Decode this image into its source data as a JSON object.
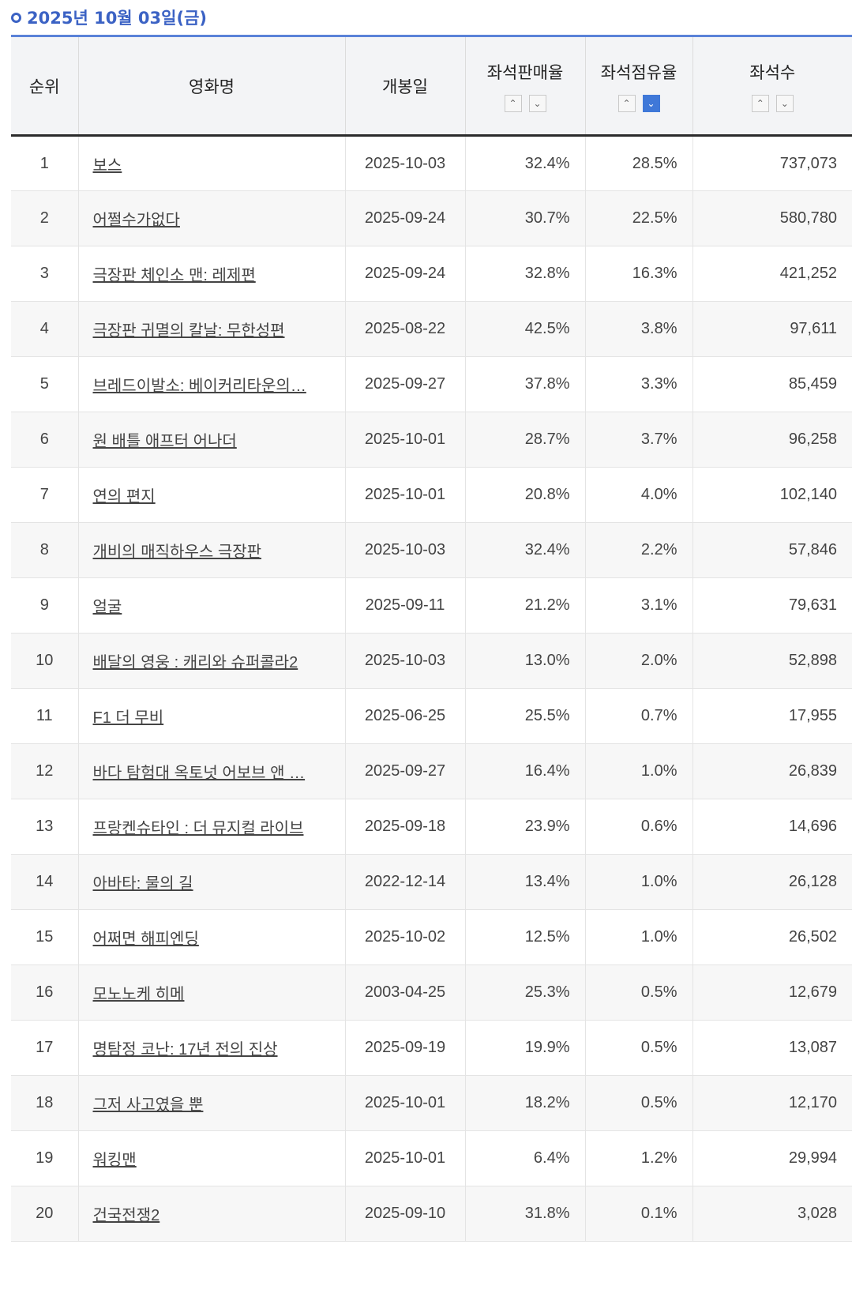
{
  "header": {
    "date": "2025년 10월 03일(금)"
  },
  "table": {
    "columns": [
      {
        "key": "rank",
        "label": "순위",
        "sortable": false
      },
      {
        "key": "title",
        "label": "영화명",
        "sortable": false
      },
      {
        "key": "release",
        "label": "개봉일",
        "sortable": false
      },
      {
        "key": "sales_rate",
        "label": "좌석판매율",
        "sortable": true,
        "active": ""
      },
      {
        "key": "share_rate",
        "label": "좌석점유율",
        "sortable": true,
        "active": "down"
      },
      {
        "key": "seats",
        "label": "좌석수",
        "sortable": true,
        "active": ""
      }
    ],
    "rows": [
      {
        "rank": "1",
        "title": "보스",
        "release": "2025-10-03",
        "sales_rate": "32.4%",
        "share_rate": "28.5%",
        "seats": "737,073"
      },
      {
        "rank": "2",
        "title": "어쩔수가없다",
        "release": "2025-09-24",
        "sales_rate": "30.7%",
        "share_rate": "22.5%",
        "seats": "580,780"
      },
      {
        "rank": "3",
        "title": "극장판 체인소 맨: 레제편",
        "release": "2025-09-24",
        "sales_rate": "32.8%",
        "share_rate": "16.3%",
        "seats": "421,252"
      },
      {
        "rank": "4",
        "title": "극장판 귀멸의 칼날: 무한성편",
        "release": "2025-08-22",
        "sales_rate": "42.5%",
        "share_rate": "3.8%",
        "seats": "97,611"
      },
      {
        "rank": "5",
        "title": "브레드이발소: 베이커리타운의…",
        "release": "2025-09-27",
        "sales_rate": "37.8%",
        "share_rate": "3.3%",
        "seats": "85,459"
      },
      {
        "rank": "6",
        "title": "원 배틀 애프터 어나더",
        "release": "2025-10-01",
        "sales_rate": "28.7%",
        "share_rate": "3.7%",
        "seats": "96,258"
      },
      {
        "rank": "7",
        "title": "연의 편지",
        "release": "2025-10-01",
        "sales_rate": "20.8%",
        "share_rate": "4.0%",
        "seats": "102,140"
      },
      {
        "rank": "8",
        "title": "개비의 매직하우스 극장판",
        "release": "2025-10-03",
        "sales_rate": "32.4%",
        "share_rate": "2.2%",
        "seats": "57,846"
      },
      {
        "rank": "9",
        "title": "얼굴",
        "release": "2025-09-11",
        "sales_rate": "21.2%",
        "share_rate": "3.1%",
        "seats": "79,631"
      },
      {
        "rank": "10",
        "title": "배달의 영웅 : 캐리와 슈퍼콜라2",
        "release": "2025-10-03",
        "sales_rate": "13.0%",
        "share_rate": "2.0%",
        "seats": "52,898"
      },
      {
        "rank": "11",
        "title": "F1 더 무비",
        "release": "2025-06-25",
        "sales_rate": "25.5%",
        "share_rate": "0.7%",
        "seats": "17,955"
      },
      {
        "rank": "12",
        "title": "바다 탐험대 옥토넛 어보브 앤 …",
        "release": "2025-09-27",
        "sales_rate": "16.4%",
        "share_rate": "1.0%",
        "seats": "26,839"
      },
      {
        "rank": "13",
        "title": "프랑켄슈타인 : 더 뮤지컬 라이브",
        "release": "2025-09-18",
        "sales_rate": "23.9%",
        "share_rate": "0.6%",
        "seats": "14,696"
      },
      {
        "rank": "14",
        "title": "아바타: 물의 길",
        "release": "2022-12-14",
        "sales_rate": "13.4%",
        "share_rate": "1.0%",
        "seats": "26,128"
      },
      {
        "rank": "15",
        "title": "어쩌면 해피엔딩",
        "release": "2025-10-02",
        "sales_rate": "12.5%",
        "share_rate": "1.0%",
        "seats": "26,502"
      },
      {
        "rank": "16",
        "title": "모노노케 히메",
        "release": "2003-04-25",
        "sales_rate": "25.3%",
        "share_rate": "0.5%",
        "seats": "12,679"
      },
      {
        "rank": "17",
        "title": "명탐정 코난: 17년 전의 진상",
        "release": "2025-09-19",
        "sales_rate": "19.9%",
        "share_rate": "0.5%",
        "seats": "13,087"
      },
      {
        "rank": "18",
        "title": "그저 사고였을 뿐",
        "release": "2025-10-01",
        "sales_rate": "18.2%",
        "share_rate": "0.5%",
        "seats": "12,170"
      },
      {
        "rank": "19",
        "title": "워킹맨",
        "release": "2025-10-01",
        "sales_rate": "6.4%",
        "share_rate": "1.2%",
        "seats": "29,994"
      },
      {
        "rank": "20",
        "title": "건국전쟁2",
        "release": "2025-09-10",
        "sales_rate": "31.8%",
        "share_rate": "0.1%",
        "seats": "3,028"
      }
    ]
  },
  "icons": {
    "sort_up": "caret-up-icon",
    "sort_down": "caret-down-icon",
    "header_bullet": "circle-icon"
  },
  "colors": {
    "accent": "#3b62c4",
    "active_sort": "#3f78d8"
  }
}
